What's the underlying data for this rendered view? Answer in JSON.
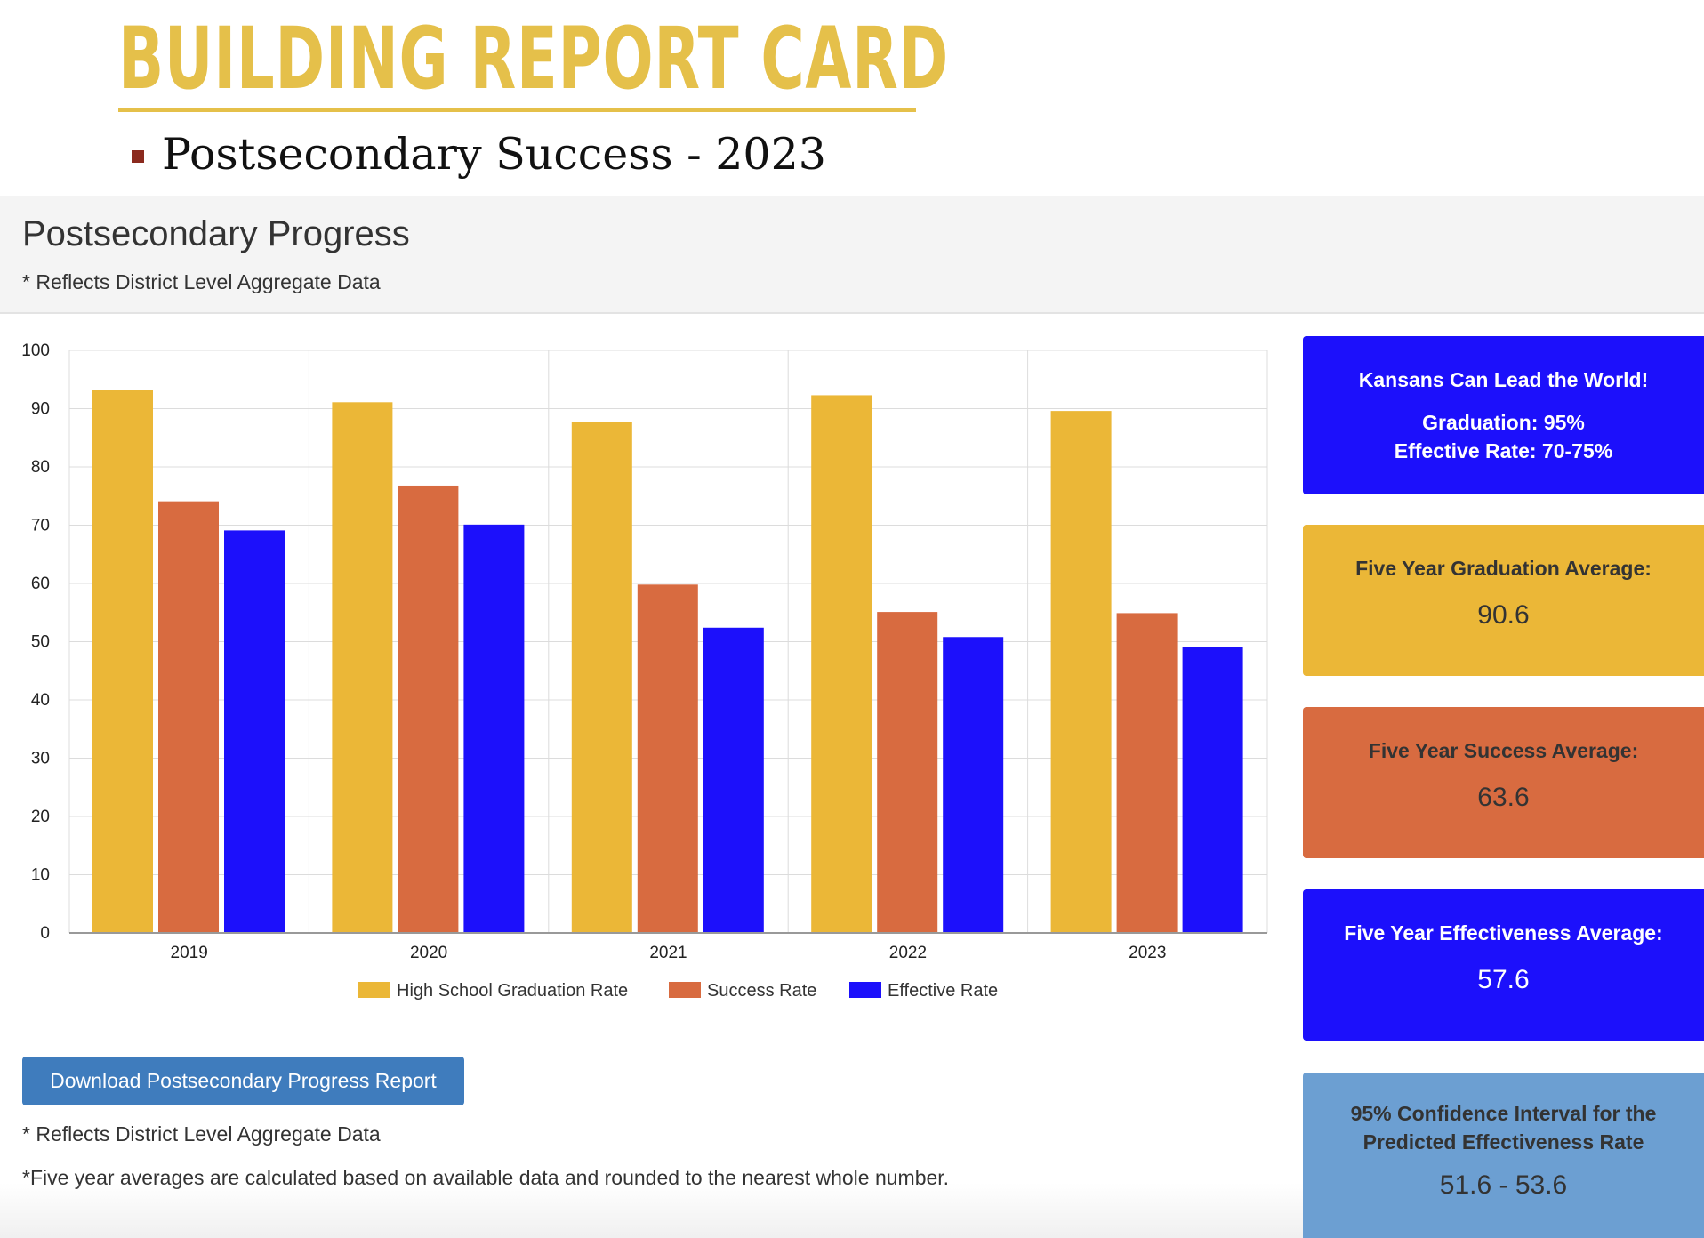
{
  "slide": {
    "title": "BUILDING REPORT CARD",
    "subtitle": "Postsecondary Success - 2023"
  },
  "panel": {
    "title": "Postsecondary Progress",
    "note": "* Reflects District Level Aggregate Data"
  },
  "chart_data": {
    "type": "bar",
    "categories": [
      "2019",
      "2020",
      "2021",
      "2022",
      "2023"
    ],
    "series": [
      {
        "name": "High School Graduation Rate",
        "color": "#ebb737",
        "values": [
          93.2,
          91.1,
          87.7,
          92.3,
          89.6
        ]
      },
      {
        "name": "Success Rate",
        "color": "#d86b40",
        "values": [
          74.1,
          76.8,
          59.8,
          55.1,
          54.9
        ]
      },
      {
        "name": "Effective Rate",
        "color": "#1c10fb",
        "values": [
          69.1,
          70.1,
          52.4,
          50.8,
          49.1
        ]
      }
    ],
    "ylim": [
      0,
      100
    ],
    "yticks": [
      0,
      10,
      20,
      30,
      40,
      50,
      60,
      70,
      80,
      90,
      100
    ],
    "grid": true,
    "legend_position": "bottom-center",
    "title": "",
    "xlabel": "",
    "ylabel": ""
  },
  "download_label": "Download Postsecondary Progress Report",
  "footnotes": {
    "district": "* Reflects District Level Aggregate Data",
    "averages": "*Five year averages are calculated based on available data and rounded to the nearest whole number."
  },
  "cards": {
    "goal": {
      "heading": "Kansans Can Lead the World!",
      "line1": "Graduation: 95%",
      "line2": "Effective Rate: 70-75%"
    },
    "graduation": {
      "label": "Five Year Graduation Average:",
      "value": "90.6"
    },
    "success": {
      "label": "Five Year Success Average:",
      "value": "63.6"
    },
    "effectiveness": {
      "label": "Five Year Effectiveness Average:",
      "value": "57.6"
    },
    "confidence": {
      "line1": "95% Confidence Interval for the",
      "line2": "Predicted Effectiveness Rate",
      "value": "51.6 - 53.6"
    }
  }
}
